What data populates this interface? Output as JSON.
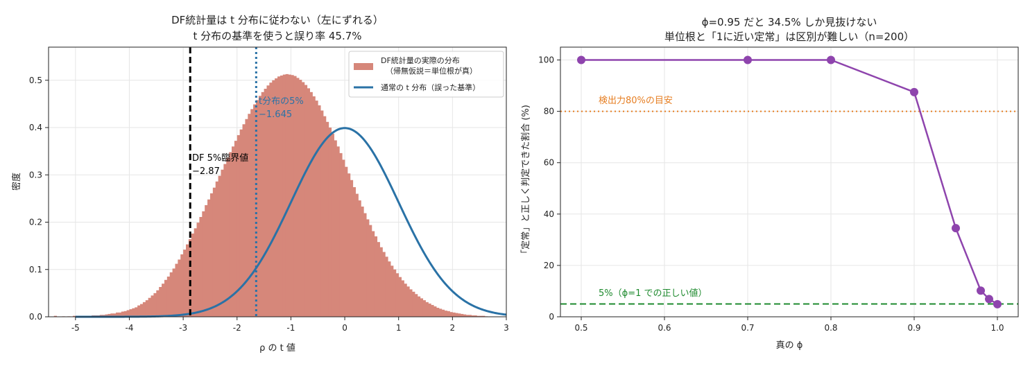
{
  "chart_data": [
    {
      "type": "histogram+line",
      "title_line1": "DF統計量は t 分布に従わない（左にずれる）",
      "title_line2": "t 分布の基準を使うと誤り率 45.7%",
      "xlabel": "ρ の t 値",
      "ylabel": "密度",
      "xlim": [
        -5.5,
        3.0
      ],
      "ylim": [
        0,
        0.57
      ],
      "xticks": [
        -5,
        -4,
        -3,
        -2,
        -1,
        0,
        1,
        2,
        3
      ],
      "xtick_labels": [
        "-5",
        "-4",
        "-3",
        "-2",
        "-1",
        "0",
        "1",
        "2",
        "3"
      ],
      "yticks": [
        0.0,
        0.1,
        0.2,
        0.3,
        0.4,
        0.5
      ],
      "ytick_labels": [
        "0.0",
        "0.1",
        "0.2",
        "0.3",
        "0.4",
        "0.5"
      ],
      "grid": true,
      "legend_position": "top-right",
      "histogram": {
        "name": "DF統計量の実際の分布\n（帰無仮説＝単位根が真）",
        "color": "#d6877a",
        "bin_start": -5.4,
        "bin_width": 0.05,
        "densities": [
          0.002,
          0.0,
          0.0,
          0.001,
          0.0,
          0.001,
          0.0,
          0.002,
          0.001,
          0.002,
          0.002,
          0.001,
          0.002,
          0.002,
          0.003,
          0.003,
          0.003,
          0.004,
          0.004,
          0.005,
          0.006,
          0.007,
          0.007,
          0.009,
          0.009,
          0.011,
          0.012,
          0.014,
          0.016,
          0.018,
          0.02,
          0.024,
          0.027,
          0.031,
          0.035,
          0.04,
          0.045,
          0.05,
          0.056,
          0.063,
          0.07,
          0.078,
          0.085,
          0.094,
          0.102,
          0.112,
          0.121,
          0.132,
          0.142,
          0.153,
          0.164,
          0.176,
          0.187,
          0.199,
          0.211,
          0.223,
          0.236,
          0.248,
          0.261,
          0.273,
          0.286,
          0.298,
          0.311,
          0.323,
          0.336,
          0.348,
          0.36,
          0.372,
          0.384,
          0.396,
          0.407,
          0.418,
          0.429,
          0.439,
          0.449,
          0.458,
          0.467,
          0.475,
          0.482,
          0.489,
          0.495,
          0.5,
          0.504,
          0.508,
          0.51,
          0.512,
          0.513,
          0.512,
          0.511,
          0.509,
          0.505,
          0.501,
          0.496,
          0.49,
          0.483,
          0.475,
          0.466,
          0.457,
          0.447,
          0.436,
          0.424,
          0.412,
          0.4,
          0.387,
          0.373,
          0.36,
          0.346,
          0.332,
          0.317,
          0.303,
          0.289,
          0.274,
          0.26,
          0.246,
          0.233,
          0.219,
          0.206,
          0.194,
          0.181,
          0.17,
          0.158,
          0.147,
          0.137,
          0.127,
          0.117,
          0.108,
          0.1,
          0.092,
          0.084,
          0.077,
          0.07,
          0.064,
          0.058,
          0.053,
          0.048,
          0.043,
          0.039,
          0.035,
          0.031,
          0.028,
          0.025,
          0.022,
          0.019,
          0.017,
          0.015,
          0.013,
          0.012,
          0.01,
          0.009,
          0.008,
          0.007,
          0.006,
          0.005,
          0.004,
          0.004,
          0.003,
          0.003,
          0.002,
          0.002,
          0.002,
          0.001
        ]
      },
      "line": {
        "name": "通常の t 分布（誤った基準）",
        "color": "#2a72a6",
        "distribution": "standard normal density",
        "x_range": [
          -5,
          3
        ]
      },
      "vlines": [
        {
          "x": -2.87,
          "style": "dashed",
          "color": "#000000",
          "label_line1": "DF 5%臨界値",
          "label_line2": "−2.87",
          "label_color": "#000000"
        },
        {
          "x": -1.645,
          "style": "dotted",
          "color": "#2a72a6",
          "label_line1": "t分布の5%",
          "label_line2": "−1.645",
          "label_color": "#2a72a6"
        }
      ]
    },
    {
      "type": "line",
      "title_line1": "ϕ=0.95 だと 34.5% しか見抜けない",
      "title_line2": "単位根と「1に近い定常」は区別が難しい（n=200）",
      "xlabel": "真の ϕ",
      "ylabel": "「定常」と正しく判定できた割合 (%)",
      "xlim": [
        0.475,
        1.025
      ],
      "ylim": [
        0,
        105
      ],
      "xticks": [
        0.5,
        0.6,
        0.7,
        0.8,
        0.9,
        1.0
      ],
      "xtick_labels": [
        "0.5",
        "0.6",
        "0.7",
        "0.8",
        "0.9",
        "1.0"
      ],
      "yticks": [
        0,
        20,
        40,
        60,
        80,
        100
      ],
      "ytick_labels": [
        "0",
        "20",
        "40",
        "60",
        "80",
        "100"
      ],
      "grid": true,
      "series": [
        {
          "color": "#8e44ad",
          "x": [
            0.5,
            0.7,
            0.8,
            0.9,
            0.95,
            0.98,
            0.99,
            1.0
          ],
          "y": [
            100,
            100,
            100,
            87.5,
            34.5,
            10.2,
            6.9,
            4.9
          ]
        }
      ],
      "hlines": [
        {
          "y": 80,
          "style": "dotted",
          "color": "#e67e22",
          "label": "検出力80%の目安"
        },
        {
          "y": 5,
          "style": "dashed",
          "color": "#1e8a2e",
          "label": "5%（ϕ=1 での正しい値）"
        }
      ]
    }
  ]
}
